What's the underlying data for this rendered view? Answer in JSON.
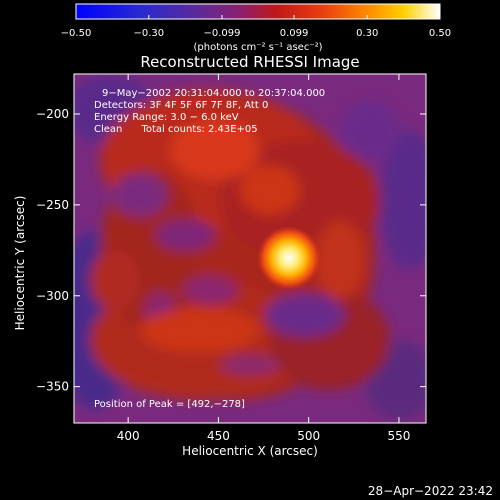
{
  "chart_data": {
    "type": "heatmap",
    "title": "Reconstructed RHESSI Image",
    "xlabel": "Heliocentric X (arcsec)",
    "ylabel": "Heliocentric Y (arcsec)",
    "xlim": [
      370,
      565
    ],
    "ylim": [
      -370,
      -178
    ],
    "x_ticks": [
      400,
      450,
      500,
      550
    ],
    "y_ticks": [
      -200,
      -250,
      -300,
      -350
    ],
    "x_tick_labels": [
      "400",
      "450",
      "500",
      "550"
    ],
    "y_tick_labels": [
      "−200",
      "−250",
      "−300",
      "−350"
    ],
    "colorbar": {
      "min": -0.5,
      "max": 0.5,
      "ticks": [
        -0.5,
        -0.3,
        -0.099,
        0.099,
        0.3,
        0.5
      ],
      "tick_labels": [
        "−0.50",
        "−0.30",
        "−0.099",
        "0.099",
        "0.30",
        "0.50"
      ],
      "units": "(photons cm⁻² s⁻¹ asec⁻²)",
      "colormap": [
        "#0000ff",
        "#3b1e9a",
        "#6a2f8e",
        "#9c1e2a",
        "#d42a10",
        "#ff7a00",
        "#ffd000",
        "#ffffff"
      ]
    },
    "peak": {
      "x": 492,
      "y": -278
    },
    "annotations": [
      "9−May−2002 20:31:04.000 to 20:37:04.000",
      "Detectors: 3F 4F 5F 6F 7F 8F, Att 0",
      "Energy Range: 3.0 − 6.0 keV",
      "Clean      Total counts: 2.43E+05"
    ],
    "peak_label": "Position of Peak = [492,−278]",
    "grid": false
  },
  "timestamp": "28−Apr−2022 23:42"
}
